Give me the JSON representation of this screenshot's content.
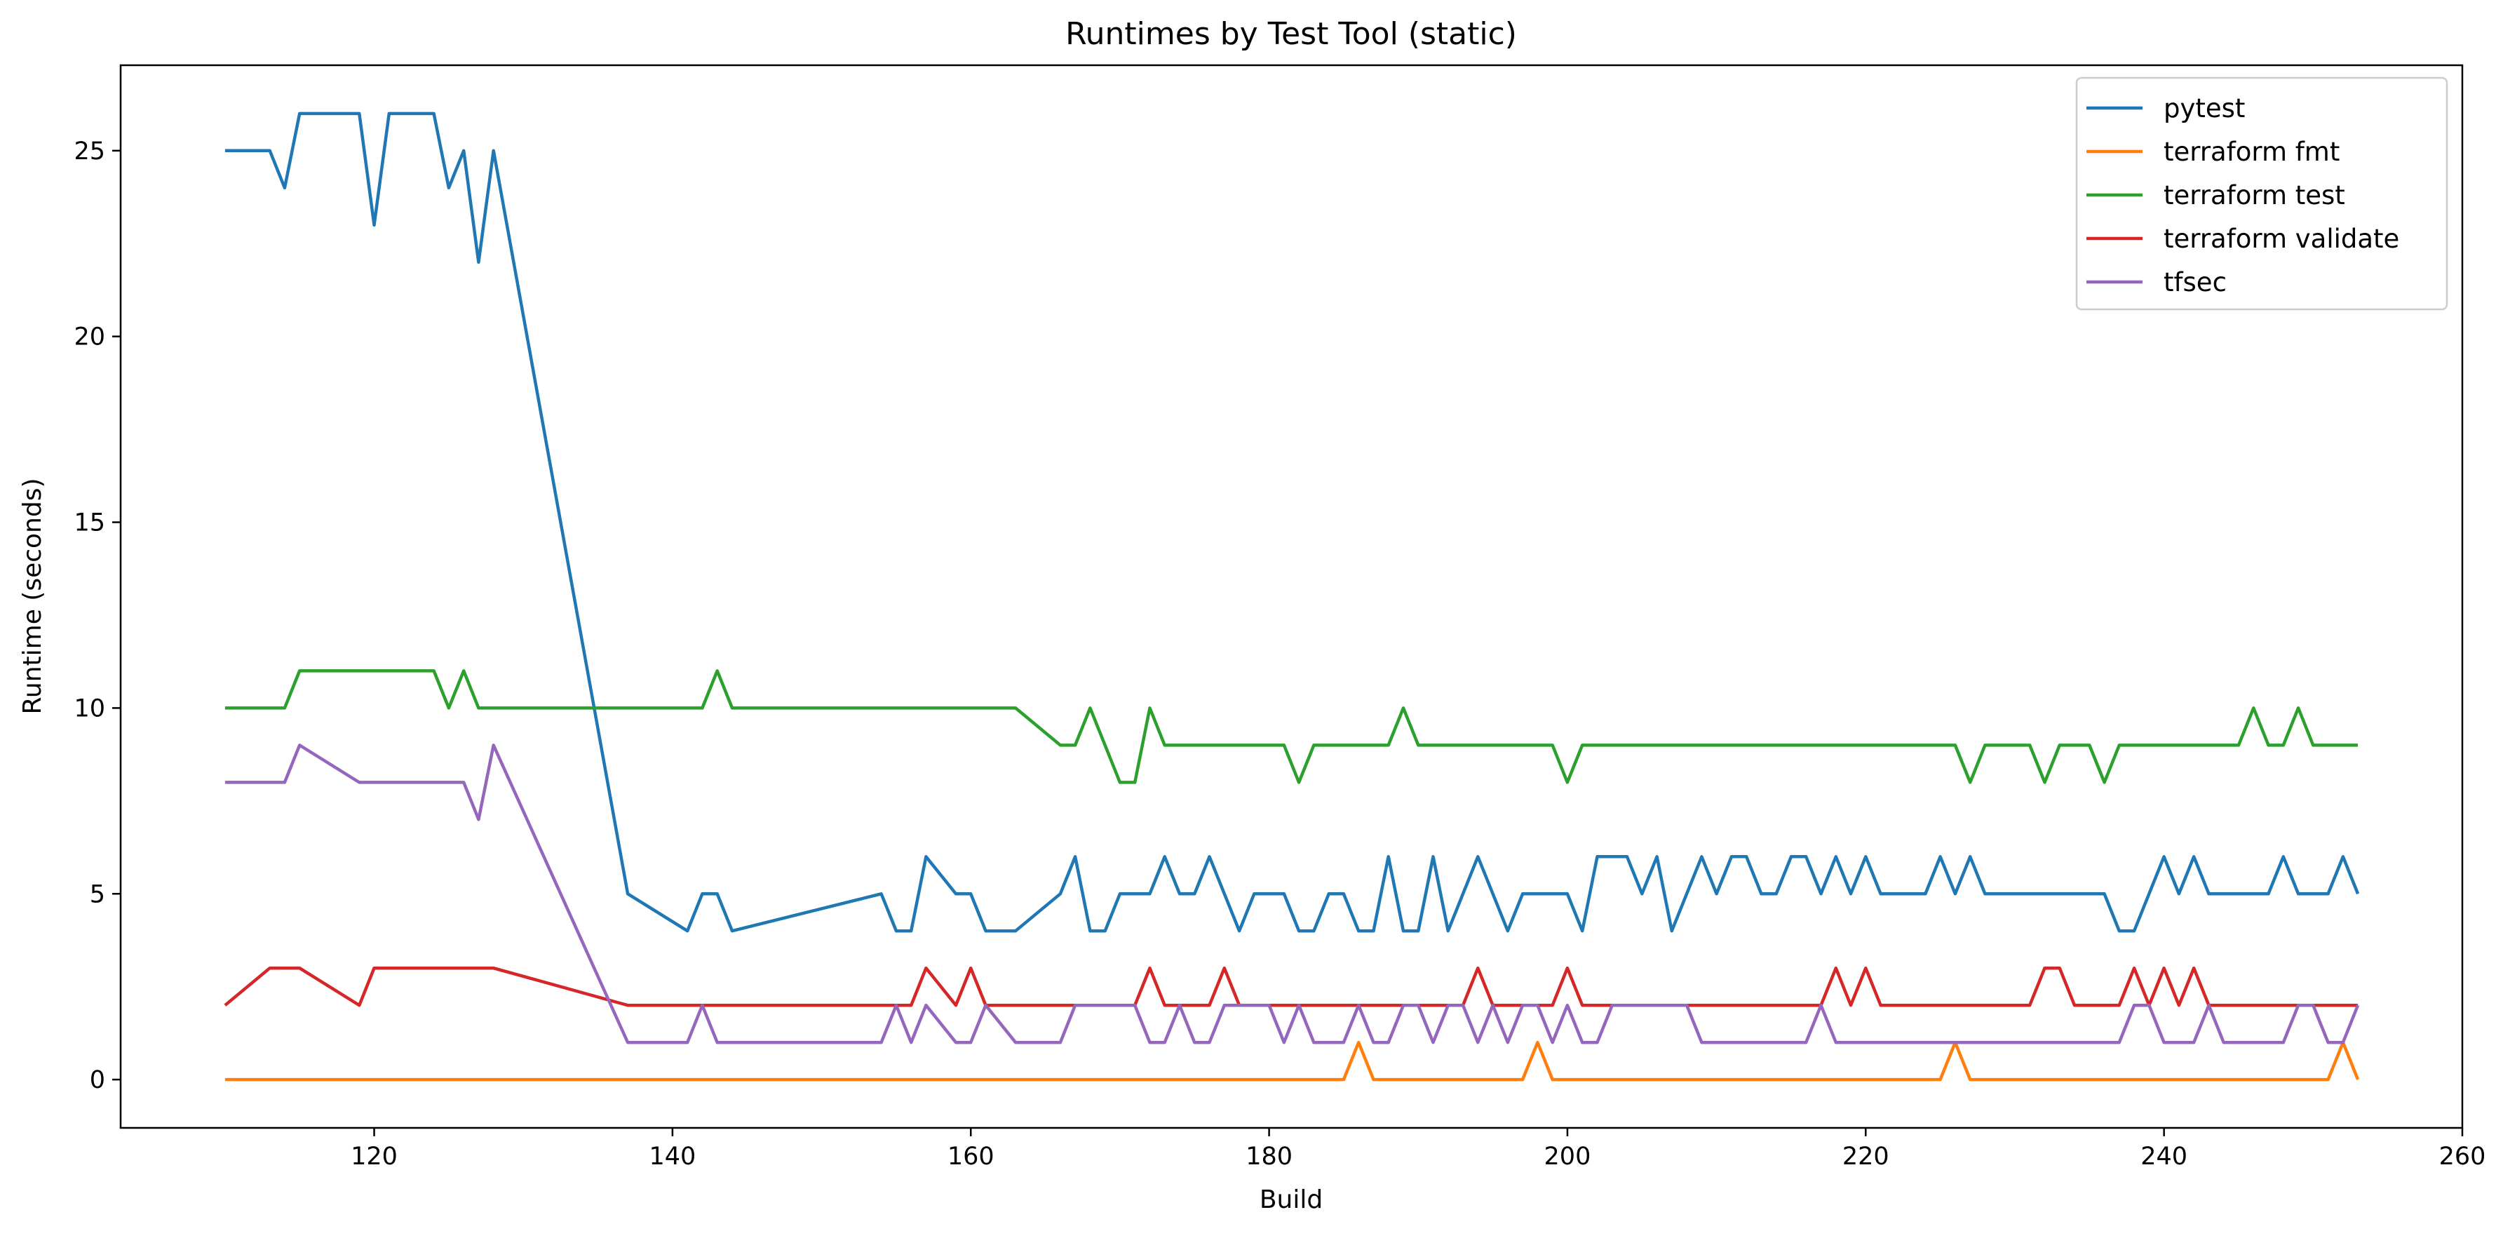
{
  "chart_data": {
    "type": "line",
    "title": "Runtimes by Test Tool (static)",
    "xlabel": "Build",
    "ylabel": "Runtime (seconds)",
    "xlim": [
      103,
      260
    ],
    "ylim": [
      -1.3,
      27.3
    ],
    "x_ticks": [
      120,
      140,
      160,
      180,
      200,
      220,
      240,
      260
    ],
    "y_ticks": [
      0,
      5,
      10,
      15,
      20,
      25
    ],
    "grid": false,
    "legend_position": "top-right",
    "series": [
      {
        "name": "pytest",
        "color": "#1f77b4",
        "points": [
          [
            110,
            25
          ],
          [
            113,
            25
          ],
          [
            114,
            24
          ],
          [
            115,
            26
          ],
          [
            119,
            26
          ],
          [
            120,
            23
          ],
          [
            121,
            26
          ],
          [
            124,
            26
          ],
          [
            125,
            24
          ],
          [
            126,
            25
          ],
          [
            127,
            22
          ],
          [
            128,
            25
          ],
          [
            137,
            5
          ],
          [
            141,
            4
          ],
          [
            142,
            5
          ],
          [
            143,
            5
          ],
          [
            144,
            4
          ],
          [
            154,
            5
          ],
          [
            155,
            4
          ],
          [
            156,
            4
          ],
          [
            157,
            6
          ],
          [
            159,
            5
          ],
          [
            160,
            5
          ],
          [
            161,
            4
          ],
          [
            163,
            4
          ],
          [
            166,
            5
          ],
          [
            167,
            6
          ],
          [
            168,
            4
          ],
          [
            169,
            4
          ],
          [
            170,
            5
          ],
          [
            172,
            5
          ],
          [
            173,
            6
          ],
          [
            174,
            5
          ],
          [
            175,
            5
          ],
          [
            176,
            6
          ],
          [
            178,
            4
          ],
          [
            179,
            5
          ],
          [
            181,
            5
          ],
          [
            182,
            4
          ],
          [
            183,
            4
          ],
          [
            184,
            5
          ],
          [
            185,
            5
          ],
          [
            186,
            4
          ],
          [
            187,
            4
          ],
          [
            188,
            6
          ],
          [
            189,
            4
          ],
          [
            190,
            4
          ],
          [
            191,
            6
          ],
          [
            192,
            4
          ],
          [
            194,
            6
          ],
          [
            196,
            4
          ],
          [
            197,
            5
          ],
          [
            200,
            5
          ],
          [
            201,
            4
          ],
          [
            202,
            6
          ],
          [
            204,
            6
          ],
          [
            205,
            5
          ],
          [
            206,
            6
          ],
          [
            207,
            4
          ],
          [
            209,
            6
          ],
          [
            210,
            5
          ],
          [
            211,
            6
          ],
          [
            212,
            6
          ],
          [
            213,
            5
          ],
          [
            214,
            5
          ],
          [
            215,
            6
          ],
          [
            216,
            6
          ],
          [
            217,
            5
          ],
          [
            218,
            6
          ],
          [
            219,
            5
          ],
          [
            220,
            6
          ],
          [
            221,
            5
          ],
          [
            224,
            5
          ],
          [
            225,
            6
          ],
          [
            226,
            5
          ],
          [
            227,
            6
          ],
          [
            228,
            5
          ],
          [
            236,
            5
          ],
          [
            237,
            4
          ],
          [
            238,
            4
          ],
          [
            240,
            6
          ],
          [
            241,
            5
          ],
          [
            242,
            6
          ],
          [
            243,
            5
          ],
          [
            247,
            5
          ],
          [
            248,
            6
          ],
          [
            249,
            5
          ],
          [
            251,
            5
          ],
          [
            252,
            6
          ],
          [
            253,
            5
          ]
        ]
      },
      {
        "name": "terraform fmt",
        "color": "#ff7f0e",
        "points": [
          [
            110,
            0
          ],
          [
            185,
            0
          ],
          [
            186,
            1
          ],
          [
            187,
            0
          ],
          [
            197,
            0
          ],
          [
            198,
            1
          ],
          [
            199,
            0
          ],
          [
            225,
            0
          ],
          [
            226,
            1
          ],
          [
            227,
            0
          ],
          [
            251,
            0
          ],
          [
            252,
            1
          ],
          [
            253,
            0
          ]
        ]
      },
      {
        "name": "terraform test",
        "color": "#2ca02c",
        "points": [
          [
            110,
            10
          ],
          [
            114,
            10
          ],
          [
            115,
            11
          ],
          [
            124,
            11
          ],
          [
            125,
            10
          ],
          [
            126,
            11
          ],
          [
            127,
            10
          ],
          [
            142,
            10
          ],
          [
            143,
            11
          ],
          [
            144,
            10
          ],
          [
            163,
            10
          ],
          [
            166,
            9
          ],
          [
            167,
            9
          ],
          [
            168,
            10
          ],
          [
            170,
            8
          ],
          [
            171,
            8
          ],
          [
            172,
            10
          ],
          [
            173,
            9
          ],
          [
            181,
            9
          ],
          [
            182,
            8
          ],
          [
            183,
            9
          ],
          [
            188,
            9
          ],
          [
            189,
            10
          ],
          [
            190,
            9
          ],
          [
            199,
            9
          ],
          [
            200,
            8
          ],
          [
            201,
            9
          ],
          [
            226,
            9
          ],
          [
            227,
            8
          ],
          [
            228,
            9
          ],
          [
            231,
            9
          ],
          [
            232,
            8
          ],
          [
            233,
            9
          ],
          [
            235,
            9
          ],
          [
            236,
            8
          ],
          [
            237,
            9
          ],
          [
            245,
            9
          ],
          [
            246,
            10
          ],
          [
            247,
            9
          ],
          [
            248,
            9
          ],
          [
            249,
            10
          ],
          [
            250,
            9
          ],
          [
            253,
            9
          ]
        ]
      },
      {
        "name": "terraform validate",
        "color": "#d62728",
        "points": [
          [
            110,
            2
          ],
          [
            113,
            3
          ],
          [
            115,
            3
          ],
          [
            119,
            2
          ],
          [
            120,
            3
          ],
          [
            128,
            3
          ],
          [
            137,
            2
          ],
          [
            156,
            2
          ],
          [
            157,
            3
          ],
          [
            159,
            2
          ],
          [
            160,
            3
          ],
          [
            161,
            2
          ],
          [
            171,
            2
          ],
          [
            172,
            3
          ],
          [
            173,
            2
          ],
          [
            176,
            2
          ],
          [
            177,
            3
          ],
          [
            178,
            2
          ],
          [
            193,
            2
          ],
          [
            194,
            3
          ],
          [
            195,
            2
          ],
          [
            199,
            2
          ],
          [
            200,
            3
          ],
          [
            201,
            2
          ],
          [
            217,
            2
          ],
          [
            218,
            3
          ],
          [
            219,
            2
          ],
          [
            220,
            3
          ],
          [
            221,
            2
          ],
          [
            231,
            2
          ],
          [
            232,
            3
          ],
          [
            233,
            3
          ],
          [
            234,
            2
          ],
          [
            237,
            2
          ],
          [
            238,
            3
          ],
          [
            239,
            2
          ],
          [
            240,
            3
          ],
          [
            241,
            2
          ],
          [
            242,
            3
          ],
          [
            243,
            2
          ],
          [
            253,
            2
          ]
        ]
      },
      {
        "name": "tfsec",
        "color": "#9467bd",
        "points": [
          [
            110,
            8
          ],
          [
            114,
            8
          ],
          [
            115,
            9
          ],
          [
            119,
            8
          ],
          [
            126,
            8
          ],
          [
            127,
            7
          ],
          [
            128,
            9
          ],
          [
            137,
            1
          ],
          [
            141,
            1
          ],
          [
            142,
            2
          ],
          [
            143,
            1
          ],
          [
            154,
            1
          ],
          [
            155,
            2
          ],
          [
            156,
            1
          ],
          [
            157,
            2
          ],
          [
            159,
            1
          ],
          [
            160,
            1
          ],
          [
            161,
            2
          ],
          [
            163,
            1
          ],
          [
            166,
            1
          ],
          [
            167,
            2
          ],
          [
            171,
            2
          ],
          [
            172,
            1
          ],
          [
            173,
            1
          ],
          [
            174,
            2
          ],
          [
            175,
            1
          ],
          [
            176,
            1
          ],
          [
            177,
            2
          ],
          [
            180,
            2
          ],
          [
            181,
            1
          ],
          [
            182,
            2
          ],
          [
            183,
            1
          ],
          [
            185,
            1
          ],
          [
            186,
            2
          ],
          [
            187,
            1
          ],
          [
            188,
            1
          ],
          [
            189,
            2
          ],
          [
            190,
            2
          ],
          [
            191,
            1
          ],
          [
            192,
            2
          ],
          [
            193,
            2
          ],
          [
            194,
            1
          ],
          [
            195,
            2
          ],
          [
            196,
            1
          ],
          [
            197,
            2
          ],
          [
            198,
            2
          ],
          [
            199,
            1
          ],
          [
            200,
            2
          ],
          [
            201,
            1
          ],
          [
            202,
            1
          ],
          [
            203,
            2
          ],
          [
            208,
            2
          ],
          [
            209,
            1
          ],
          [
            216,
            1
          ],
          [
            217,
            2
          ],
          [
            218,
            1
          ],
          [
            237,
            1
          ],
          [
            238,
            2
          ],
          [
            239,
            2
          ],
          [
            240,
            1
          ],
          [
            242,
            1
          ],
          [
            243,
            2
          ],
          [
            244,
            1
          ],
          [
            248,
            1
          ],
          [
            249,
            2
          ],
          [
            250,
            2
          ],
          [
            251,
            1
          ],
          [
            252,
            1
          ],
          [
            253,
            2
          ]
        ]
      }
    ]
  }
}
